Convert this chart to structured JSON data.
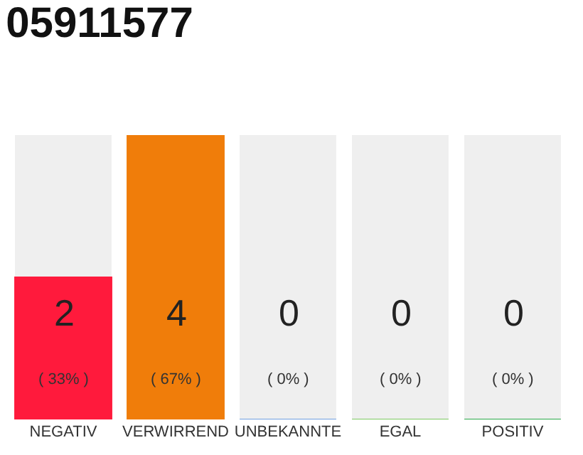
{
  "chart_data": {
    "type": "bar",
    "title": "05911577",
    "categories": [
      "NEGATIV",
      "VERWIRREND",
      "UNBEKANNTE",
      "EGAL",
      "POSITIV"
    ],
    "values": [
      2,
      4,
      0,
      0,
      0
    ],
    "colors": [
      "#ff1a3c",
      "#f07d0a",
      "#6f9fe0",
      "#7cc860",
      "#2aa84a"
    ],
    "value_labels": [
      "2\n( 33% )",
      "4\n( 67% )",
      "0\n( 0% )",
      "0\n( 0% )",
      "0\n( 0% )"
    ],
    "ylim": [
      0,
      4
    ],
    "tick_labels": "x",
    "grid": false,
    "legend": false
  }
}
